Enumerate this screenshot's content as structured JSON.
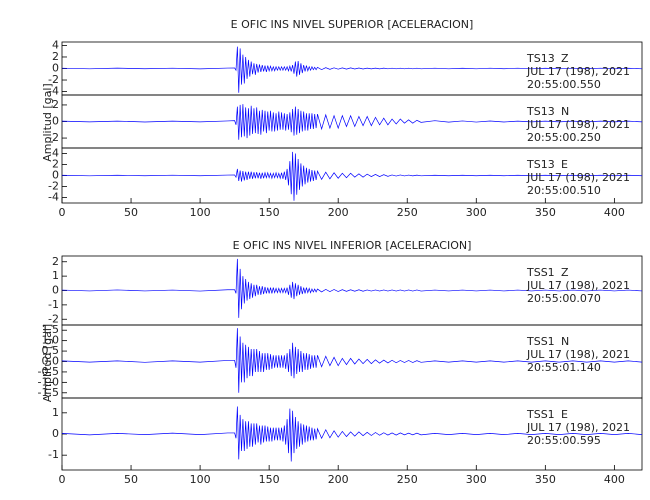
{
  "chart_data": [
    {
      "type": "line",
      "title": "E OFIC INS NIVEL SUPERIOR [ACELERACION]",
      "ylabel": "Amplitud [gal]",
      "color": "#0000ff",
      "xlim": [
        0,
        420
      ],
      "xticks": [
        0,
        50,
        100,
        150,
        200,
        250,
        300,
        350,
        400
      ],
      "x": [
        0,
        20,
        40,
        60,
        80,
        100,
        120,
        125,
        126,
        127,
        128,
        129,
        130,
        131,
        132,
        133,
        134,
        135,
        136,
        137,
        138,
        139,
        140,
        141,
        142,
        143,
        144,
        145,
        146,
        147,
        148,
        149,
        150,
        151,
        152,
        153,
        154,
        155,
        156,
        157,
        158,
        159,
        160,
        161,
        162,
        163,
        164,
        165,
        166,
        167,
        168,
        169,
        170,
        171,
        172,
        173,
        174,
        175,
        176,
        177,
        178,
        179,
        180,
        181,
        182,
        183,
        184,
        185,
        188,
        191,
        194,
        197,
        200,
        203,
        206,
        209,
        212,
        215,
        218,
        221,
        224,
        227,
        230,
        233,
        236,
        239,
        242,
        245,
        248,
        251,
        254,
        257,
        260,
        270,
        280,
        290,
        300,
        310,
        320,
        330,
        340,
        350,
        360,
        370,
        380,
        390,
        400,
        410,
        420
      ],
      "panels": [
        {
          "station": "TS13",
          "component": "Z",
          "date": "JUL 17 (198), 2021",
          "time": "20:55:00.550",
          "ylim": [
            -4.6,
            4.6
          ],
          "yticks": [
            -4,
            -2,
            0,
            2,
            4
          ],
          "values": [
            0.05,
            -0.05,
            0.06,
            -0.04,
            0.05,
            -0.06,
            0.08,
            0.1,
            -0.3,
            3.8,
            -4.2,
            3.5,
            -2.8,
            2.4,
            -2.6,
            2.0,
            -1.8,
            1.5,
            -1.4,
            1.2,
            -1.0,
            0.9,
            -1.1,
            0.8,
            -0.7,
            0.7,
            -0.6,
            0.6,
            -0.5,
            0.5,
            -0.6,
            0.5,
            -0.4,
            0.4,
            -0.4,
            0.3,
            -0.4,
            0.3,
            -0.3,
            0.3,
            -0.3,
            0.3,
            -0.3,
            0.3,
            -0.3,
            0.3,
            -0.4,
            0.4,
            -0.5,
            0.6,
            -0.9,
            1.2,
            -1.4,
            1.3,
            -1.1,
            0.9,
            -0.8,
            0.6,
            -0.5,
            0.5,
            -0.4,
            0.3,
            -0.3,
            0.3,
            -0.2,
            0.2,
            -0.2,
            0.2,
            -0.2,
            0.15,
            -0.15,
            0.12,
            -0.12,
            0.1,
            -0.1,
            0.1,
            -0.08,
            0.08,
            -0.08,
            0.07,
            -0.07,
            0.06,
            -0.06,
            0.06,
            -0.05,
            0.05,
            -0.05,
            0.05,
            -0.05,
            0.05,
            -0.05,
            0.05,
            -0.05,
            0.05,
            -0.05,
            0.04,
            -0.05,
            0.05,
            -0.04,
            0.05,
            -0.05,
            0.04,
            -0.05,
            0.05,
            -0.04,
            0.05,
            -0.05,
            0.04,
            -0.05
          ]
        },
        {
          "station": "TS13",
          "component": "N",
          "date": "JUL 17 (198), 2021",
          "time": "20:55:00.250",
          "ylim": [
            -3.2,
            3.2
          ],
          "yticks": [
            -2,
            0,
            2
          ],
          "values": [
            0.05,
            -0.05,
            0.05,
            -0.06,
            0.05,
            -0.05,
            0.07,
            0.1,
            -0.4,
            1.8,
            -2.2,
            2.0,
            -1.9,
            2.1,
            -1.8,
            1.7,
            -2.0,
            1.6,
            -1.7,
            1.9,
            -1.5,
            1.6,
            -1.4,
            1.7,
            -1.5,
            1.3,
            -1.6,
            1.4,
            -1.2,
            1.3,
            -1.4,
            1.2,
            -1.1,
            1.3,
            -1.2,
            1.1,
            -1.2,
            1.0,
            -1.1,
            1.2,
            -1.0,
            1.1,
            -1.0,
            1.0,
            -1.1,
            0.9,
            -1.0,
            1.1,
            -1.3,
            1.5,
            -1.7,
            1.8,
            -1.6,
            1.5,
            -1.4,
            1.3,
            -1.2,
            1.2,
            -1.1,
            1.0,
            -1.1,
            1.0,
            -0.9,
            1.0,
            -0.9,
            0.9,
            -0.8,
            0.9,
            -0.9,
            0.8,
            -0.8,
            0.7,
            -0.8,
            0.7,
            -0.6,
            0.7,
            -0.6,
            0.6,
            -0.5,
            0.6,
            -0.5,
            0.5,
            -0.4,
            0.4,
            -0.4,
            0.3,
            -0.3,
            0.3,
            -0.2,
            0.2,
            -0.2,
            0.15,
            -0.1,
            0.1,
            -0.08,
            0.07,
            -0.07,
            0.06,
            -0.06,
            0.05,
            -0.05,
            0.05,
            -0.05,
            0.05,
            -0.05,
            0.05,
            -0.05,
            0.05,
            -0.05
          ]
        },
        {
          "station": "TS13",
          "component": "E",
          "date": "JUL 17 (198), 2021",
          "time": "20:55:00.510",
          "ylim": [
            -5,
            5
          ],
          "yticks": [
            -4,
            -2,
            0,
            2,
            4
          ],
          "values": [
            0.05,
            -0.06,
            0.05,
            -0.05,
            0.06,
            -0.05,
            0.08,
            0.1,
            -0.3,
            1.2,
            -1.0,
            0.9,
            -1.1,
            0.8,
            -0.9,
            0.7,
            -0.8,
            0.7,
            -0.6,
            0.7,
            -0.6,
            0.6,
            -0.5,
            0.6,
            -0.5,
            0.5,
            -0.6,
            0.5,
            -0.5,
            0.5,
            -0.4,
            0.5,
            -0.4,
            0.4,
            -0.5,
            0.4,
            -0.4,
            0.5,
            -0.4,
            0.4,
            -0.5,
            0.5,
            -0.6,
            0.7,
            -0.8,
            1.2,
            -1.8,
            2.6,
            -3.4,
            4.3,
            -4.6,
            4.0,
            -3.5,
            3.0,
            -2.6,
            2.2,
            -2.0,
            1.8,
            -1.6,
            1.4,
            -1.3,
            1.2,
            -1.1,
            1.0,
            -1.0,
            0.9,
            -0.8,
            0.8,
            -0.7,
            0.6,
            -0.6,
            0.5,
            -0.5,
            0.4,
            -0.4,
            0.4,
            -0.3,
            0.3,
            -0.3,
            0.25,
            -0.2,
            0.2,
            -0.2,
            0.15,
            -0.15,
            0.1,
            -0.1,
            0.1,
            -0.08,
            0.08,
            -0.07,
            0.07,
            -0.06,
            0.05,
            -0.05,
            0.05,
            -0.05,
            0.05,
            -0.05,
            0.05,
            -0.05,
            0.05,
            -0.05,
            0.05,
            -0.05,
            0.05,
            -0.05,
            0.05,
            -0.05
          ]
        }
      ]
    },
    {
      "type": "line",
      "title": "E OFIC INS NIVEL INFERIOR [ACELERACION]",
      "ylabel": "Amplitud [gal]",
      "color": "#0000ff",
      "xlim": [
        0,
        420
      ],
      "xticks": [
        0,
        50,
        100,
        150,
        200,
        250,
        300,
        350,
        400
      ],
      "x": [
        0,
        20,
        40,
        60,
        80,
        100,
        120,
        125,
        126,
        127,
        128,
        129,
        130,
        131,
        132,
        133,
        134,
        135,
        136,
        137,
        138,
        139,
        140,
        141,
        142,
        143,
        144,
        145,
        146,
        147,
        148,
        149,
        150,
        151,
        152,
        153,
        154,
        155,
        156,
        157,
        158,
        159,
        160,
        161,
        162,
        163,
        164,
        165,
        166,
        167,
        168,
        169,
        170,
        171,
        172,
        173,
        174,
        175,
        176,
        177,
        178,
        179,
        180,
        181,
        182,
        183,
        184,
        185,
        188,
        191,
        194,
        197,
        200,
        203,
        206,
        209,
        212,
        215,
        218,
        221,
        224,
        227,
        230,
        233,
        236,
        239,
        242,
        245,
        248,
        251,
        254,
        257,
        260,
        270,
        280,
        290,
        300,
        310,
        320,
        330,
        340,
        350,
        360,
        370,
        380,
        390,
        400,
        410,
        420
      ],
      "panels": [
        {
          "station": "TSS1",
          "component": "Z",
          "date": "JUL 17 (198), 2021",
          "time": "20:55:00.070",
          "ylim": [
            -2.4,
            2.4
          ],
          "yticks": [
            -2,
            -1,
            0,
            1,
            2
          ],
          "values": [
            0.03,
            -0.03,
            0.04,
            -0.03,
            0.03,
            -0.04,
            0.05,
            0.05,
            -0.2,
            2.2,
            -1.9,
            1.5,
            -1.3,
            1.0,
            -0.9,
            0.8,
            -0.7,
            0.6,
            -0.6,
            0.5,
            -0.5,
            0.4,
            -0.4,
            0.4,
            -0.3,
            0.3,
            -0.3,
            0.3,
            -0.25,
            0.25,
            -0.2,
            0.2,
            -0.2,
            0.2,
            -0.2,
            0.2,
            -0.15,
            0.15,
            -0.15,
            0.15,
            -0.15,
            0.15,
            -0.15,
            0.15,
            -0.15,
            0.2,
            -0.3,
            0.4,
            -0.5,
            0.6,
            -0.6,
            0.5,
            -0.4,
            0.4,
            -0.3,
            0.3,
            -0.25,
            0.2,
            -0.2,
            0.2,
            -0.15,
            0.15,
            -0.15,
            0.1,
            -0.1,
            0.1,
            -0.1,
            0.1,
            -0.1,
            0.08,
            -0.08,
            0.07,
            -0.07,
            0.06,
            -0.06,
            0.05,
            -0.05,
            0.05,
            -0.05,
            0.04,
            -0.04,
            0.04,
            -0.04,
            0.04,
            -0.04,
            0.04,
            -0.04,
            0.04,
            -0.04,
            0.04,
            -0.04,
            0.04,
            -0.04,
            0.03,
            -0.03,
            0.03,
            -0.03,
            0.03,
            -0.03,
            0.03,
            -0.03,
            0.03,
            -0.03,
            0.03,
            -0.03,
            0.03,
            -0.03,
            0.03,
            -0.03
          ]
        },
        {
          "station": "TSS1",
          "component": "N",
          "date": "JUL 17 (198), 2021",
          "time": "20:55:01.140",
          "ylim": [
            -1.75,
            1.75
          ],
          "yticks": [
            -1.5,
            {
              "value": -1,
              "label": "-1.0"
            },
            -0.5,
            {
              "value": 0,
              "label": "0.0"
            },
            0.5,
            {
              "value": 1,
              "label": "1.0"
            },
            1.5
          ],
          "values": [
            0.03,
            -0.03,
            0.03,
            -0.04,
            0.03,
            -0.03,
            0.05,
            0.05,
            -0.3,
            1.6,
            -1.5,
            1.2,
            -1.0,
            0.9,
            -1.0,
            0.8,
            -0.8,
            0.7,
            -0.7,
            0.6,
            -0.7,
            0.6,
            -0.5,
            0.6,
            -0.5,
            0.5,
            -0.5,
            0.4,
            -0.5,
            0.4,
            -0.4,
            0.4,
            -0.4,
            0.35,
            -0.35,
            0.3,
            -0.3,
            0.3,
            -0.3,
            0.3,
            -0.3,
            0.3,
            -0.3,
            0.3,
            -0.35,
            0.4,
            -0.5,
            0.6,
            -0.7,
            0.9,
            -0.8,
            0.7,
            -0.6,
            0.6,
            -0.5,
            0.5,
            -0.5,
            0.4,
            -0.4,
            0.4,
            -0.4,
            0.35,
            -0.35,
            0.3,
            -0.3,
            0.3,
            -0.3,
            0.3,
            -0.25,
            0.25,
            -0.2,
            0.2,
            -0.2,
            0.15,
            -0.15,
            0.15,
            -0.12,
            0.12,
            -0.1,
            0.1,
            -0.1,
            0.08,
            -0.08,
            0.07,
            -0.07,
            0.06,
            -0.06,
            0.05,
            -0.05,
            0.05,
            -0.05,
            0.04,
            -0.04,
            0.03,
            -0.03,
            0.03,
            -0.03,
            0.03,
            -0.03,
            0.03,
            -0.03,
            0.03,
            -0.03,
            0.03,
            -0.03,
            0.03,
            -0.03,
            0.03,
            -0.03
          ]
        },
        {
          "station": "TSS1",
          "component": "E",
          "date": "JUL 17 (198), 2021",
          "time": "20:55:00.595",
          "ylim": [
            -1.7,
            1.7
          ],
          "yticks": [
            -1,
            0,
            1
          ],
          "values": [
            0.03,
            -0.04,
            0.03,
            -0.03,
            0.04,
            -0.03,
            0.05,
            0.05,
            -0.2,
            1.3,
            -1.2,
            0.9,
            -0.8,
            0.7,
            -0.8,
            0.6,
            -0.7,
            0.6,
            -0.6,
            0.5,
            -0.6,
            0.5,
            -0.5,
            0.5,
            -0.4,
            0.4,
            -0.5,
            0.4,
            -0.4,
            0.4,
            -0.35,
            0.35,
            -0.35,
            0.3,
            -0.35,
            0.3,
            -0.3,
            0.3,
            -0.3,
            0.3,
            -0.3,
            0.3,
            -0.35,
            0.4,
            -0.5,
            0.7,
            -0.9,
            1.2,
            -1.3,
            1.1,
            -0.9,
            0.8,
            -0.7,
            0.6,
            -0.6,
            0.5,
            -0.5,
            0.45,
            -0.4,
            0.4,
            -0.35,
            0.35,
            -0.3,
            0.3,
            -0.3,
            0.25,
            -0.25,
            0.25,
            -0.2,
            0.2,
            -0.18,
            0.15,
            -0.15,
            0.12,
            -0.12,
            0.1,
            -0.1,
            0.1,
            -0.08,
            0.08,
            -0.07,
            0.07,
            -0.06,
            0.06,
            -0.05,
            0.05,
            -0.05,
            0.05,
            -0.04,
            0.04,
            -0.04,
            0.04,
            -0.04,
            0.03,
            -0.03,
            0.03,
            -0.03,
            0.03,
            -0.03,
            0.03,
            -0.03,
            0.03,
            -0.03,
            0.03,
            -0.03,
            0.03,
            -0.03,
            0.03,
            -0.03
          ]
        }
      ]
    }
  ]
}
